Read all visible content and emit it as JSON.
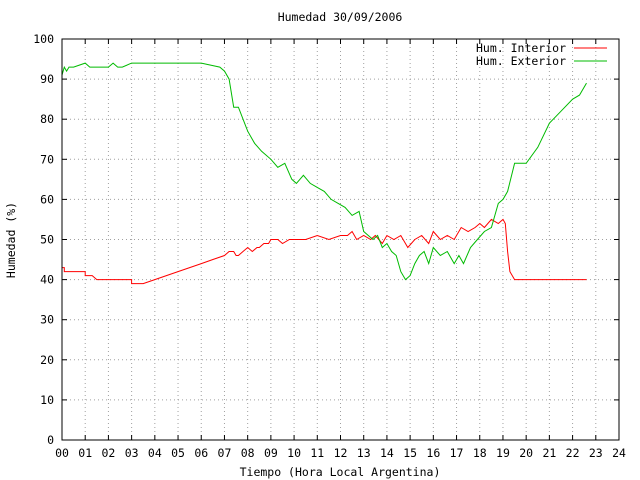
{
  "chart_data": {
    "type": "line",
    "title": "Humedad 30/09/2006",
    "xlabel": "Tiempo (Hora Local Argentina)",
    "ylabel": "Humedad (%)",
    "xlim": [
      0,
      24
    ],
    "ylim": [
      0,
      100
    ],
    "xticks": [
      "00",
      "01",
      "02",
      "03",
      "04",
      "05",
      "06",
      "07",
      "08",
      "09",
      "10",
      "11",
      "12",
      "13",
      "14",
      "15",
      "16",
      "17",
      "18",
      "19",
      "20",
      "21",
      "22",
      "23",
      "24"
    ],
    "yticks": [
      "0",
      "10",
      "20",
      "30",
      "40",
      "50",
      "60",
      "70",
      "80",
      "90",
      "100"
    ],
    "grid": true,
    "legend_position": "top-right",
    "series": [
      {
        "name": "Hum. Interior",
        "color": "#ff0000",
        "x": [
          0.0,
          0.1,
          0.1,
          1.0,
          1.0,
          1.3,
          1.3,
          1.5,
          1.5,
          3.0,
          3.0,
          3.5,
          4.0,
          5.0,
          6.0,
          6.5,
          7.0,
          7.2,
          7.4,
          7.5,
          7.6,
          7.8,
          8.0,
          8.2,
          8.4,
          8.5,
          8.7,
          8.9,
          9.0,
          9.3,
          9.5,
          9.8,
          10.0,
          10.5,
          11.0,
          11.5,
          12.0,
          12.3,
          12.5,
          12.7,
          13.0,
          13.3,
          13.5,
          13.8,
          14.0,
          14.3,
          14.6,
          14.9,
          15.2,
          15.5,
          15.8,
          16.0,
          16.3,
          16.6,
          16.9,
          17.2,
          17.5,
          17.8,
          18.0,
          18.2,
          18.5,
          18.8,
          19.0,
          19.1,
          19.2,
          19.3,
          19.5,
          20.0,
          21.0,
          22.0,
          22.6
        ],
        "values": [
          43,
          43,
          42,
          42,
          41,
          41,
          41,
          40,
          40,
          40,
          39,
          39,
          40,
          42,
          44,
          45,
          46,
          47,
          47,
          46,
          46,
          47,
          48,
          47,
          48,
          48,
          49,
          49,
          50,
          50,
          49,
          50,
          50,
          50,
          51,
          50,
          51,
          51,
          52,
          50,
          51,
          50,
          51,
          49,
          51,
          50,
          51,
          48,
          50,
          51,
          49,
          52,
          50,
          51,
          50,
          53,
          52,
          53,
          54,
          53,
          55,
          54,
          55,
          54,
          47,
          42,
          40,
          40,
          40,
          40,
          40
        ]
      },
      {
        "name": "Hum. Exterior",
        "color": "#00bb00",
        "x": [
          0.0,
          0.1,
          0.2,
          0.3,
          0.5,
          1.0,
          1.2,
          1.4,
          1.6,
          2.0,
          2.2,
          2.4,
          2.6,
          3.0,
          3.5,
          4.0,
          5.0,
          6.0,
          6.8,
          7.0,
          7.2,
          7.4,
          7.6,
          8.0,
          8.3,
          8.6,
          9.0,
          9.3,
          9.6,
          9.9,
          10.1,
          10.4,
          10.7,
          11.0,
          11.3,
          11.6,
          11.9,
          12.2,
          12.5,
          12.8,
          13.0,
          13.2,
          13.4,
          13.6,
          13.8,
          14.0,
          14.2,
          14.4,
          14.6,
          14.8,
          15.0,
          15.2,
          15.4,
          15.6,
          15.8,
          16.0,
          16.3,
          16.6,
          16.9,
          17.1,
          17.3,
          17.6,
          17.9,
          18.2,
          18.5,
          18.8,
          19.0,
          19.2,
          19.5,
          20.0,
          20.5,
          21.0,
          21.5,
          22.0,
          22.3,
          22.6
        ],
        "values": [
          91,
          93,
          92,
          93,
          93,
          94,
          93,
          93,
          93,
          93,
          94,
          93,
          93,
          94,
          94,
          94,
          94,
          94,
          93,
          92,
          90,
          83,
          83,
          77,
          74,
          72,
          70,
          68,
          69,
          65,
          64,
          66,
          64,
          63,
          62,
          60,
          59,
          58,
          56,
          57,
          52,
          51,
          50,
          51,
          48,
          49,
          47,
          46,
          42,
          40,
          41,
          44,
          46,
          47,
          44,
          48,
          46,
          47,
          44,
          46,
          44,
          48,
          50,
          52,
          53,
          59,
          60,
          62,
          69,
          69,
          73,
          79,
          82,
          85,
          86,
          89
        ]
      }
    ]
  }
}
